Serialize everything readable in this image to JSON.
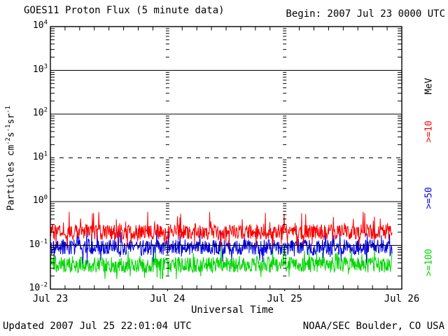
{
  "header": {
    "title": "GOES11 Proton Flux (5 minute data)",
    "begin": "Begin: 2007 Jul 23 0000 UTC"
  },
  "footer": {
    "updated": "Updated 2007 Jul 25 22:01:04 UTC",
    "source": "NOAA/SEC Boulder, CO USA"
  },
  "axes": {
    "x": {
      "label": "Universal Time",
      "tick_labels": [
        "Jul 23",
        "Jul 24",
        "Jul 25",
        "Jul 26"
      ]
    },
    "y": {
      "label_parts": [
        "Particles cm",
        "-2",
        "s",
        "-1",
        "sr",
        "-1"
      ],
      "tick_base": "10",
      "tick_exponents": [
        "4",
        "3",
        "2",
        "1",
        "0",
        "-1",
        "-2"
      ]
    }
  },
  "legend": {
    "unit_label": "MeV",
    "unit_color": "#000000",
    "entries": [
      {
        "label": ">=10",
        "color": "#fa0000"
      },
      {
        "label": ">=50",
        "color": "#0000dd"
      },
      {
        "label": ">=100",
        "color": "#00d500"
      }
    ]
  },
  "chart_data": {
    "type": "line",
    "title": "GOES11 Proton Flux (5 minute data)",
    "begin": "2007 Jul 23 0000 UTC",
    "xlabel": "Universal Time",
    "ylabel": "Particles cm^-2 s^-1 sr^-1",
    "x_day_labels": [
      "Jul 23",
      "Jul 24",
      "Jul 25",
      "Jul 26"
    ],
    "x_span_days": 3,
    "data_end_day_fraction": 2.9167,
    "sample_interval_minutes": 5,
    "y_scale": "log10",
    "ylim": [
      0.01,
      10000
    ],
    "solid_hlines": [
      1000,
      100,
      1,
      0.1
    ],
    "dashed_hlines": [
      10
    ],
    "vertical_tick_columns_at_days": [
      1,
      2
    ],
    "grid_color": "#000000",
    "series": [
      {
        "name": ">=10 MeV",
        "color": "#fa0000",
        "approx_mean_flux": 0.2,
        "approx_range_flux": [
          0.09,
          0.58
        ]
      },
      {
        "name": ">=50 MeV",
        "color": "#0000dd",
        "approx_mean_flux": 0.09,
        "approx_range_flux": [
          0.038,
          0.22
        ]
      },
      {
        "name": ">=100 MeV",
        "color": "#00d500",
        "approx_mean_flux": 0.036,
        "approx_range_flux": [
          0.017,
          0.09
        ]
      }
    ]
  }
}
